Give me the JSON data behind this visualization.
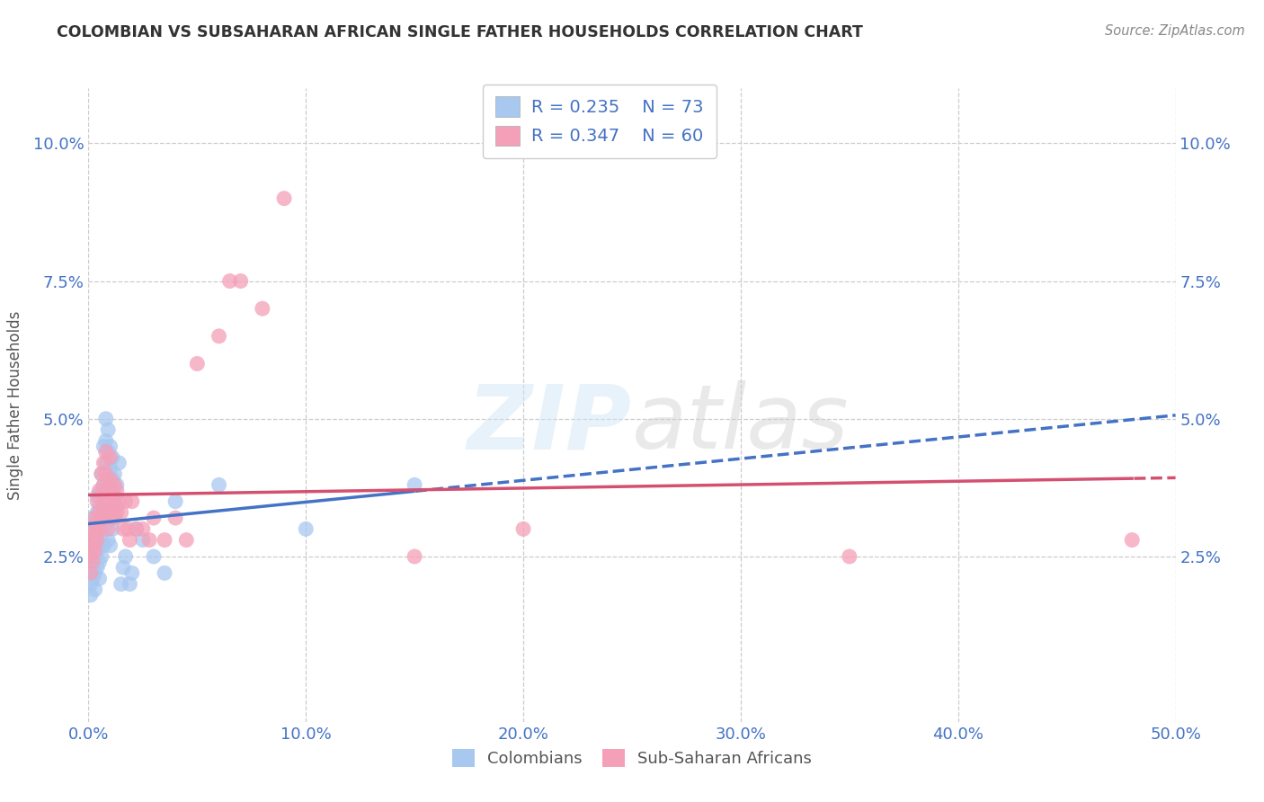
{
  "title": "COLOMBIAN VS SUBSAHARAN AFRICAN SINGLE FATHER HOUSEHOLDS CORRELATION CHART",
  "source": "Source: ZipAtlas.com",
  "ylabel": "Single Father Households",
  "watermark": "ZIPatlas",
  "colombians": {
    "R": 0.235,
    "N": 73,
    "color": "#a8c8f0",
    "line_color": "#4472c4",
    "scatter": [
      [
        0.001,
        0.022
      ],
      [
        0.001,
        0.025
      ],
      [
        0.001,
        0.02
      ],
      [
        0.001,
        0.028
      ],
      [
        0.001,
        0.018
      ],
      [
        0.002,
        0.03
      ],
      [
        0.002,
        0.024
      ],
      [
        0.002,
        0.027
      ],
      [
        0.002,
        0.021
      ],
      [
        0.002,
        0.032
      ],
      [
        0.003,
        0.028
      ],
      [
        0.003,
        0.025
      ],
      [
        0.003,
        0.022
      ],
      [
        0.003,
        0.031
      ],
      [
        0.003,
        0.019
      ],
      [
        0.004,
        0.033
      ],
      [
        0.004,
        0.029
      ],
      [
        0.004,
        0.026
      ],
      [
        0.004,
        0.023
      ],
      [
        0.004,
        0.036
      ],
      [
        0.005,
        0.03
      ],
      [
        0.005,
        0.027
      ],
      [
        0.005,
        0.024
      ],
      [
        0.005,
        0.034
      ],
      [
        0.005,
        0.021
      ],
      [
        0.006,
        0.037
      ],
      [
        0.006,
        0.033
      ],
      [
        0.006,
        0.029
      ],
      [
        0.006,
        0.025
      ],
      [
        0.006,
        0.04
      ],
      [
        0.007,
        0.034
      ],
      [
        0.007,
        0.03
      ],
      [
        0.007,
        0.027
      ],
      [
        0.007,
        0.038
      ],
      [
        0.007,
        0.045
      ],
      [
        0.008,
        0.05
      ],
      [
        0.008,
        0.046
      ],
      [
        0.008,
        0.042
      ],
      [
        0.008,
        0.035
      ],
      [
        0.008,
        0.031
      ],
      [
        0.009,
        0.048
      ],
      [
        0.009,
        0.044
      ],
      [
        0.009,
        0.039
      ],
      [
        0.009,
        0.033
      ],
      [
        0.009,
        0.028
      ],
      [
        0.01,
        0.045
      ],
      [
        0.01,
        0.041
      ],
      [
        0.01,
        0.037
      ],
      [
        0.01,
        0.032
      ],
      [
        0.01,
        0.027
      ],
      [
        0.011,
        0.043
      ],
      [
        0.011,
        0.039
      ],
      [
        0.011,
        0.035
      ],
      [
        0.011,
        0.03
      ],
      [
        0.012,
        0.04
      ],
      [
        0.012,
        0.036
      ],
      [
        0.012,
        0.032
      ],
      [
        0.013,
        0.038
      ],
      [
        0.013,
        0.034
      ],
      [
        0.014,
        0.042
      ],
      [
        0.015,
        0.02
      ],
      [
        0.016,
        0.023
      ],
      [
        0.017,
        0.025
      ],
      [
        0.019,
        0.02
      ],
      [
        0.02,
        0.022
      ],
      [
        0.022,
        0.03
      ],
      [
        0.025,
        0.028
      ],
      [
        0.03,
        0.025
      ],
      [
        0.035,
        0.022
      ],
      [
        0.04,
        0.035
      ],
      [
        0.06,
        0.038
      ],
      [
        0.1,
        0.03
      ],
      [
        0.15,
        0.038
      ]
    ]
  },
  "subsaharan": {
    "R": 0.347,
    "N": 60,
    "color": "#f4a0b8",
    "line_color": "#d45070",
    "scatter": [
      [
        0.001,
        0.022
      ],
      [
        0.001,
        0.025
      ],
      [
        0.001,
        0.028
      ],
      [
        0.002,
        0.024
      ],
      [
        0.002,
        0.027
      ],
      [
        0.002,
        0.03
      ],
      [
        0.003,
        0.026
      ],
      [
        0.003,
        0.029
      ],
      [
        0.003,
        0.032
      ],
      [
        0.004,
        0.028
      ],
      [
        0.004,
        0.031
      ],
      [
        0.004,
        0.035
      ],
      [
        0.005,
        0.03
      ],
      [
        0.005,
        0.033
      ],
      [
        0.005,
        0.037
      ],
      [
        0.006,
        0.032
      ],
      [
        0.006,
        0.036
      ],
      [
        0.006,
        0.04
      ],
      [
        0.007,
        0.034
      ],
      [
        0.007,
        0.038
      ],
      [
        0.007,
        0.042
      ],
      [
        0.008,
        0.036
      ],
      [
        0.008,
        0.04
      ],
      [
        0.008,
        0.044
      ],
      [
        0.009,
        0.033
      ],
      [
        0.009,
        0.037
      ],
      [
        0.009,
        0.03
      ],
      [
        0.01,
        0.035
      ],
      [
        0.01,
        0.039
      ],
      [
        0.01,
        0.043
      ],
      [
        0.011,
        0.032
      ],
      [
        0.011,
        0.036
      ],
      [
        0.012,
        0.034
      ],
      [
        0.012,
        0.038
      ],
      [
        0.013,
        0.033
      ],
      [
        0.013,
        0.037
      ],
      [
        0.014,
        0.035
      ],
      [
        0.015,
        0.033
      ],
      [
        0.016,
        0.03
      ],
      [
        0.017,
        0.035
      ],
      [
        0.018,
        0.03
      ],
      [
        0.019,
        0.028
      ],
      [
        0.02,
        0.035
      ],
      [
        0.022,
        0.03
      ],
      [
        0.025,
        0.03
      ],
      [
        0.028,
        0.028
      ],
      [
        0.03,
        0.032
      ],
      [
        0.035,
        0.028
      ],
      [
        0.04,
        0.032
      ],
      [
        0.045,
        0.028
      ],
      [
        0.05,
        0.06
      ],
      [
        0.06,
        0.065
      ],
      [
        0.065,
        0.075
      ],
      [
        0.07,
        0.075
      ],
      [
        0.08,
        0.07
      ],
      [
        0.09,
        0.09
      ],
      [
        0.15,
        0.025
      ],
      [
        0.2,
        0.03
      ],
      [
        0.35,
        0.025
      ],
      [
        0.48,
        0.028
      ]
    ]
  },
  "xlim": [
    0.0,
    0.5
  ],
  "ylim": [
    -0.005,
    0.11
  ],
  "xticks": [
    0.0,
    0.1,
    0.2,
    0.3,
    0.4,
    0.5
  ],
  "xtick_labels": [
    "0.0%",
    "10.0%",
    "20.0%",
    "30.0%",
    "40.0%",
    "50.0%"
  ],
  "ytick_vals": [
    0.0,
    0.025,
    0.05,
    0.075,
    0.1
  ],
  "ytick_labels_left": [
    "",
    "2.5%",
    "5.0%",
    "7.5%",
    "10.0%"
  ],
  "ytick_labels_right": [
    "",
    "2.5%",
    "5.0%",
    "7.5%",
    "10.0%"
  ],
  "grid_color": "#cccccc",
  "background_color": "#ffffff",
  "title_color": "#333333",
  "tick_label_color": "#4472c4",
  "legend_text_color": "#4472c4"
}
